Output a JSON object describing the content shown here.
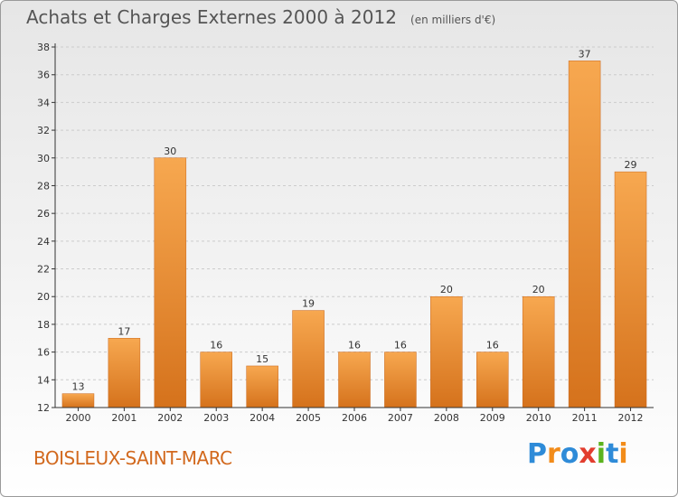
{
  "title": "Achats et Charges Externes 2000 à 2012",
  "subtitle": "(en milliers d'€)",
  "commune": "BOISLEUX-SAINT-MARC",
  "logo": {
    "letters": [
      "P",
      "r",
      "o",
      "x",
      "i",
      "t",
      "i"
    ],
    "colors": [
      "#2e8bd8",
      "#f28c1a",
      "#2e8bd8",
      "#e23d2e",
      "#5bb31e",
      "#2e8bd8",
      "#f28c1a"
    ]
  },
  "colors": {
    "bar_light": "#f7a850",
    "bar_dark": "#d5721c",
    "axis": "#333333",
    "grid": "#cccccc",
    "text": "#333333"
  },
  "chart_data": {
    "type": "bar",
    "categories": [
      "2000",
      "2001",
      "2002",
      "2003",
      "2004",
      "2005",
      "2006",
      "2007",
      "2008",
      "2009",
      "2010",
      "2011",
      "2012"
    ],
    "values": [
      13,
      17,
      30,
      16,
      15,
      19,
      16,
      16,
      20,
      16,
      20,
      37,
      29
    ],
    "data_labels": [
      "13",
      "17",
      "30",
      "16",
      "15",
      "19",
      "16",
      "16",
      "20",
      "16",
      "20",
      "37",
      "29"
    ],
    "ylim": [
      12,
      38
    ],
    "yticks": [
      12,
      14,
      16,
      18,
      20,
      22,
      24,
      26,
      28,
      30,
      32,
      34,
      36,
      38
    ],
    "grid": true,
    "xlabel": "",
    "ylabel": ""
  }
}
